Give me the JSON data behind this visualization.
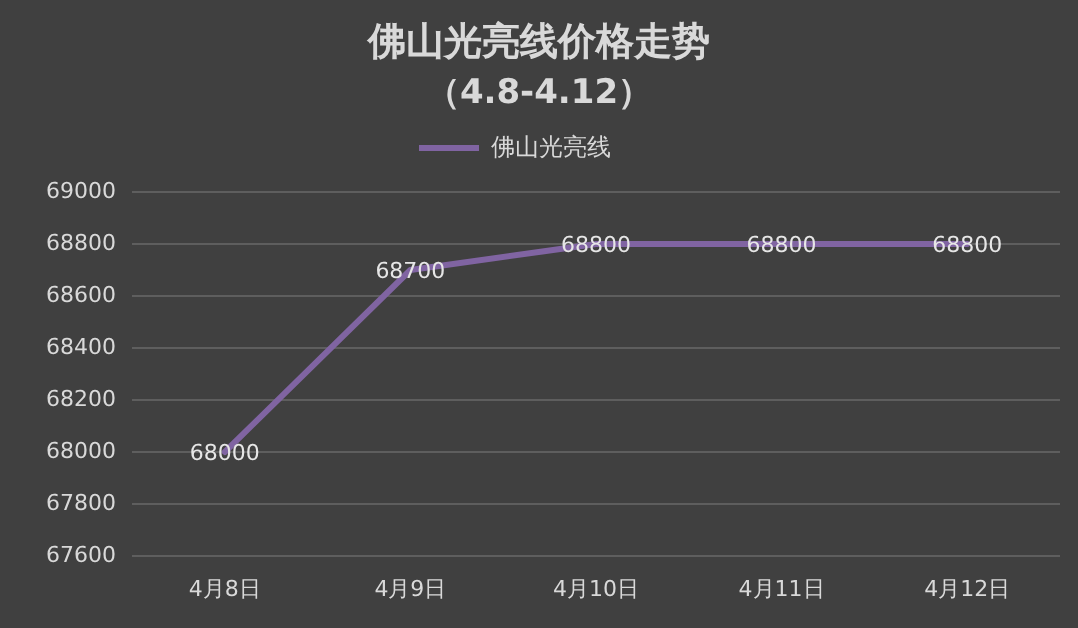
{
  "chart_data": {
    "type": "line",
    "title": "佛山光亮线价格走势",
    "subtitle": "（4.8-4.12）",
    "categories": [
      "4月8日",
      "4月9日",
      "4月10日",
      "4月11日",
      "4月12日"
    ],
    "series": [
      {
        "name": "佛山光亮线",
        "color": "#8064a2",
        "values": [
          68000,
          68700,
          68800,
          68800,
          68800
        ]
      }
    ],
    "ylim": [
      67600,
      69000
    ],
    "yticks": [
      67600,
      67800,
      68000,
      68200,
      68400,
      68600,
      68800,
      69000
    ],
    "grid": "y",
    "legend": "top",
    "data_labels": true,
    "marker": "none",
    "line_style": "solid"
  }
}
